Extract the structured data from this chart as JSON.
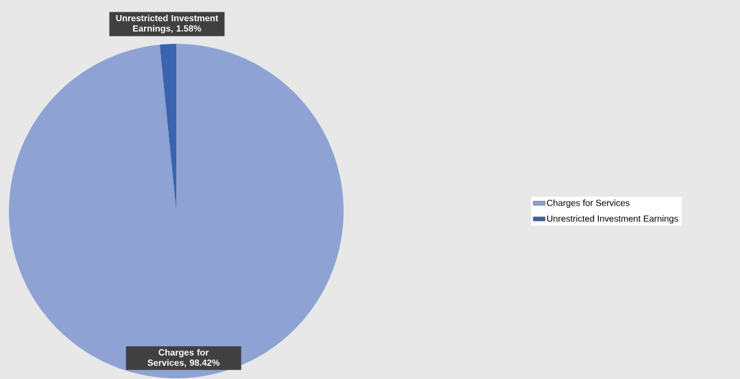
{
  "chart_data": {
    "type": "pie",
    "categories": [
      "Charges for Services",
      "Unrestricted Investment Earnings"
    ],
    "values": [
      98.42,
      1.58
    ],
    "colors": [
      "#8ea3d4",
      "#3a63b0"
    ],
    "value_labels": [
      "Charges for Services, 98.42%",
      "Unrestricted Investment Earnings, 1.58%"
    ],
    "legend": "right"
  }
}
